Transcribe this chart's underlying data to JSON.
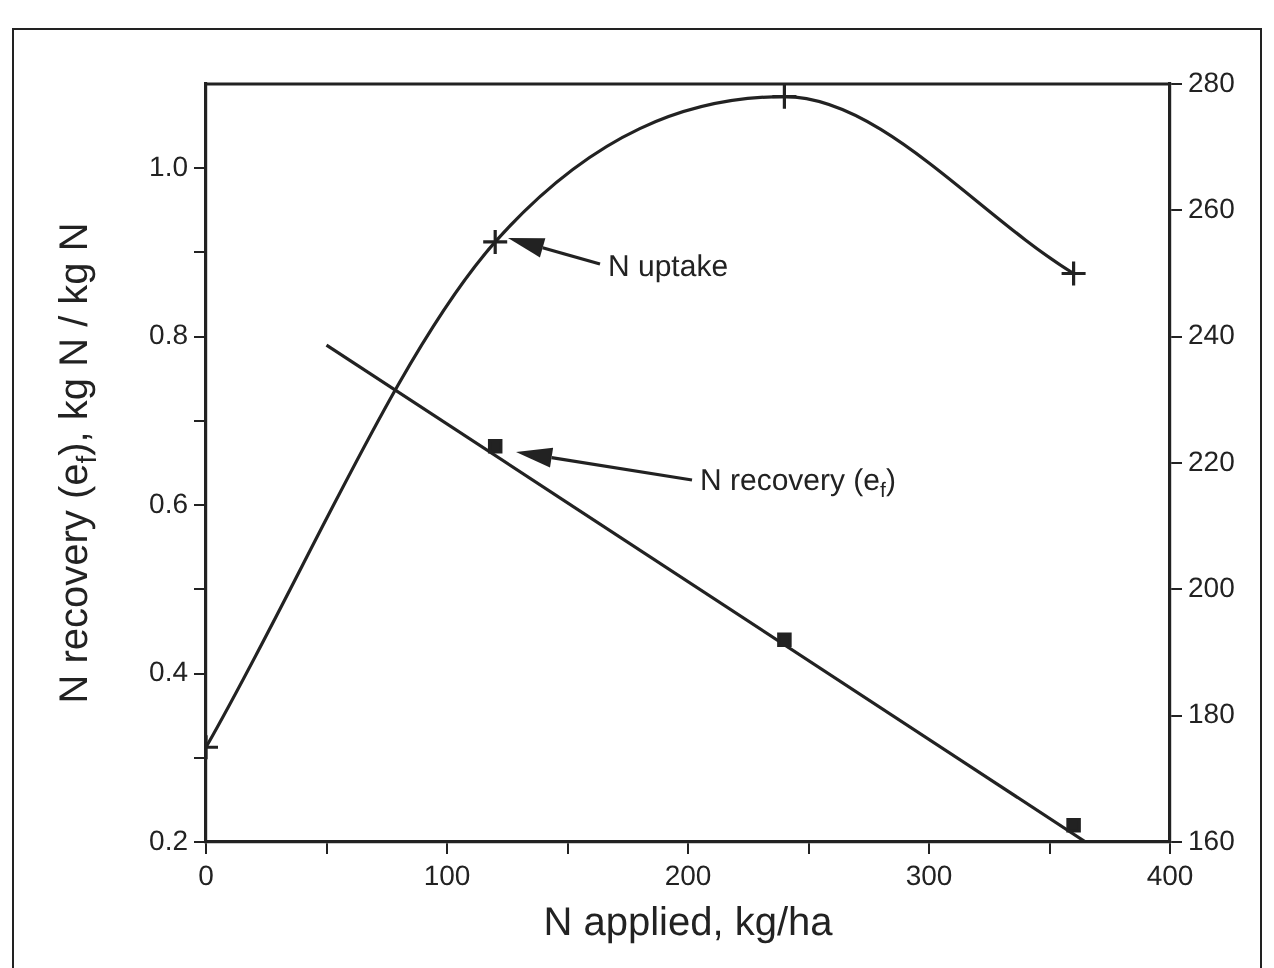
{
  "chart_data": {
    "type": "line",
    "xlabel": "N applied, kg/ha",
    "ylabel": "N recovery (e$_{f}$), kg N / kg N",
    "xlim": [
      0,
      400
    ],
    "xticks": [
      0,
      {
        "value": 50,
        "label": null
      },
      100,
      {
        "value": 150,
        "label": null
      },
      200,
      {
        "value": 250,
        "label": null
      },
      300,
      {
        "value": 350,
        "label": null
      },
      400
    ],
    "ylim": [
      0.2,
      1.1
    ],
    "yticks": [
      {
        "value": 0.2,
        "label": "0.2"
      },
      {
        "value": 0.3,
        "label": null
      },
      {
        "value": 0.4,
        "label": "0.4"
      },
      {
        "value": 0.5,
        "label": null
      },
      {
        "value": 0.6,
        "label": "0.6"
      },
      {
        "value": 0.7,
        "label": null
      },
      {
        "value": 0.8,
        "label": "0.8"
      },
      {
        "value": 0.9,
        "label": null
      },
      {
        "value": 1.0,
        "label": "1.0"
      }
    ],
    "y2lim": [
      160,
      280
    ],
    "y2ticks": [
      160,
      180,
      200,
      220,
      240,
      260,
      280
    ],
    "x": [
      0,
      120,
      240,
      360
    ],
    "series": [
      {
        "color": "#222222",
        "values": [
          175,
          255,
          278,
          250
        ],
        "axis": "y2",
        "marker": "cross"
      },
      {
        "type": "scatter",
        "color": "#222222",
        "x": [
          120,
          240,
          360
        ],
        "values": [
          0.67,
          0.44,
          0.22
        ],
        "marker": "square"
      },
      {
        "type": "line",
        "color": "#222222",
        "x": [
          50,
          365
        ],
        "values": [
          0.79,
          0.2
        ],
        "marker": "none"
      }
    ],
    "annotations": [
      "N uptake",
      "N recovery (e$_{f}$)"
    ],
    "grid": false,
    "legend": false
  }
}
